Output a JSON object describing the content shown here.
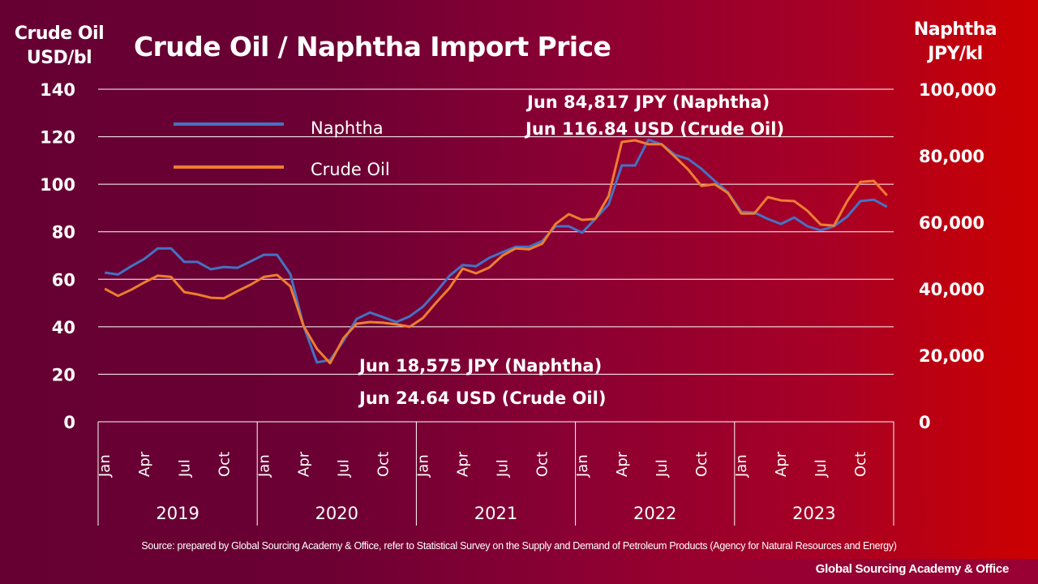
{
  "title": "Crude Oil / Naphtha Import Price",
  "left_axis_title": [
    "Crude Oil",
    "USD/bl"
  ],
  "right_axis_title": [
    "Naphtha",
    "JPY/kl"
  ],
  "source": "Source: prepared by Global Sourcing Academy & Office, refer to Statistical Survey on the Supply and Demand of Petroleum Products (Agency for Natural Resources and Energy)",
  "brand": "Global Sourcing Academy & Office",
  "colors": {
    "naphtha": "#4472C4",
    "crude_oil": "#ED7D31",
    "background_left": "#660033",
    "background_right": "#CC0000",
    "gridline": "#FFFFFF"
  },
  "chart_data": {
    "type": "line",
    "title": "Crude Oil / Naphtha Import Price",
    "xlabel": "",
    "ylabel": "Crude Oil USD/bl",
    "ylabel_right": "Naphtha JPY/kl",
    "ylim": [
      0,
      140
    ],
    "ylim_right": [
      0,
      100000
    ],
    "yticks": [
      "0",
      "20",
      "40",
      "60",
      "80",
      "100",
      "120",
      "140"
    ],
    "yticks_values": [
      0,
      20,
      40,
      60,
      80,
      100,
      120,
      140
    ],
    "yticks_right": [
      "0",
      "20,000",
      "40,000",
      "60,000",
      "80,000",
      "100,000"
    ],
    "yticks_right_values": [
      0,
      20000,
      40000,
      60000,
      80000,
      100000
    ],
    "grid": true,
    "legend_position": "top-left",
    "years": [
      "2019",
      "2020",
      "2021",
      "2022",
      "2023"
    ],
    "month_ticks": [
      "Jan",
      "Apr",
      "Jul",
      "Oct"
    ],
    "month_tick_index": [
      0,
      3,
      6,
      9
    ],
    "months_per_year": 12,
    "series": [
      {
        "name": "Naphtha",
        "axis": "right",
        "unit": "JPY/kl",
        "color": "#4472C4",
        "values": [
          44860,
          44290,
          46790,
          49000,
          52140,
          52140,
          48070,
          48070,
          45860,
          46570,
          46290,
          48210,
          50210,
          50210,
          44360,
          28790,
          17860,
          18575,
          24290,
          30930,
          32860,
          31430,
          30000,
          31710,
          34640,
          39000,
          43930,
          47140,
          46790,
          49290,
          51000,
          52640,
          52640,
          54360,
          58790,
          58790,
          56860,
          61000,
          65360,
          77070,
          77070,
          84817,
          83430,
          80290,
          79000,
          76070,
          72430,
          69000,
          63140,
          62930,
          61000,
          59500,
          61430,
          58790,
          57570,
          58790,
          61710,
          66360,
          66790,
          64640
        ]
      },
      {
        "name": "Crude Oil",
        "axis": "left",
        "unit": "USD/bl",
        "color": "#ED7D31",
        "values": [
          56.0,
          53.0,
          55.6,
          58.7,
          61.5,
          61.0,
          54.6,
          53.6,
          52.2,
          52.0,
          55.0,
          57.7,
          61.0,
          61.8,
          57.0,
          40.3,
          30.7,
          24.64,
          35.2,
          41.3,
          42.0,
          41.7,
          41.0,
          40.0,
          43.7,
          50.2,
          56.3,
          64.5,
          62.5,
          64.9,
          70.0,
          73.0,
          72.6,
          75.0,
          83.3,
          87.4,
          85.0,
          85.4,
          95.0,
          117.8,
          118.5,
          116.84,
          116.8,
          111.6,
          106.2,
          99.3,
          100.0,
          96.3,
          87.7,
          87.7,
          94.6,
          93.2,
          92.9,
          88.8,
          83.0,
          82.6,
          92.9,
          101.0,
          101.4,
          95.3
        ]
      }
    ],
    "annotations": [
      {
        "text": "Jun 84,817 JPY (Naphtha)",
        "year": "2022",
        "month": "Jun"
      },
      {
        "text": "Jun 116.84 USD (Crude Oil)",
        "year": "2022",
        "month": "Jun"
      },
      {
        "text": "Jun 18,575 JPY (Naphtha)",
        "year": "2020",
        "month": "Jun"
      },
      {
        "text": "Jun 24.64 USD (Crude Oil)",
        "year": "2020",
        "month": "Jun"
      }
    ]
  }
}
